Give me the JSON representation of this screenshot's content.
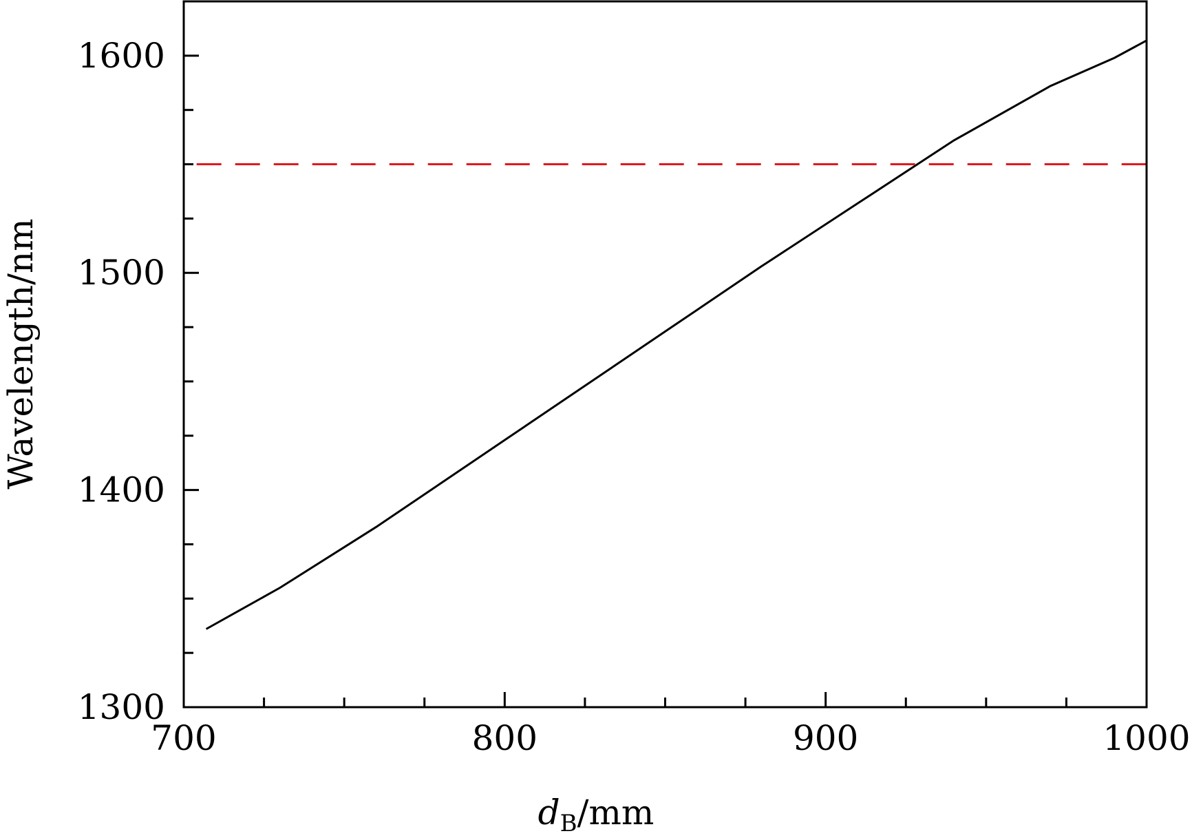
{
  "chart_data": {
    "type": "line",
    "xlabel_main": "d",
    "xlabel_sub": "B",
    "xlabel_unit": "/mm",
    "ylabel": "Wavelength/nm",
    "xlim": [
      700,
      1000
    ],
    "ylim": [
      1300,
      1625
    ],
    "xticks": [
      700,
      800,
      900,
      1000
    ],
    "xtick_labels": [
      "700",
      "800",
      "900",
      "1000"
    ],
    "yticks": [
      1300,
      1400,
      1500,
      1600
    ],
    "ytick_labels": [
      "1300",
      "1400",
      "1500",
      "1600"
    ],
    "x_minor_step": 25,
    "y_minor_step": 25,
    "grid": false,
    "series": [
      {
        "color": "#000000",
        "style": "solid",
        "x": [
          707,
          730,
          760,
          790,
          820,
          850,
          880,
          910,
          940,
          970,
          990,
          1000
        ],
        "y": [
          1336,
          1355,
          1383,
          1413,
          1443,
          1473,
          1503,
          1532,
          1561,
          1586,
          1599,
          1607
        ]
      },
      {
        "color": "#e0191e",
        "style": "dashed",
        "x": [
          704,
          1000
        ],
        "y": [
          1550,
          1550
        ]
      }
    ]
  }
}
